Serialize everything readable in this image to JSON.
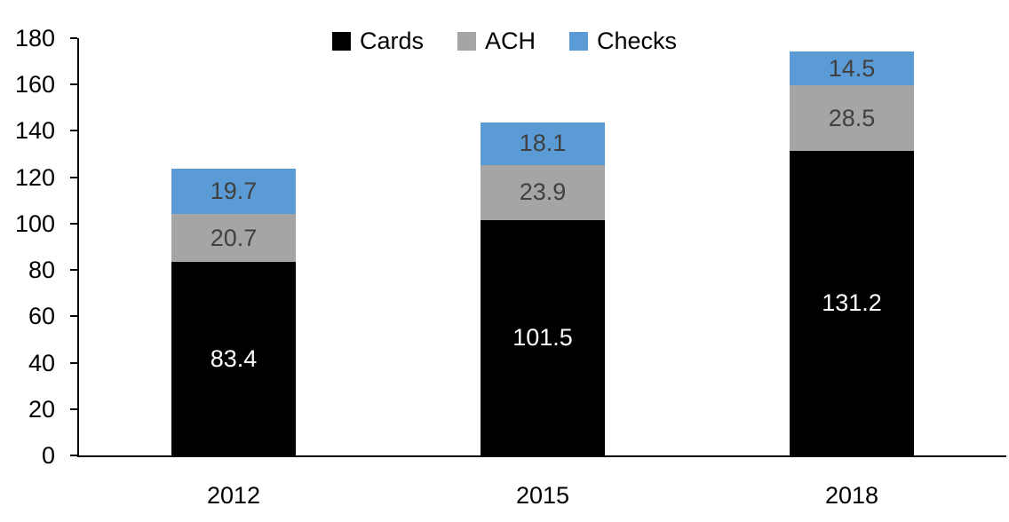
{
  "chart_data": {
    "type": "bar",
    "stacked": true,
    "title": "",
    "xlabel": "",
    "ylabel": "",
    "categories": [
      "2012",
      "2015",
      "2018"
    ],
    "series": [
      {
        "name": "Cards",
        "values": [
          83.4,
          101.5,
          131.2
        ],
        "color": "#000000",
        "label_color": "#ffffff"
      },
      {
        "name": "ACH",
        "values": [
          20.7,
          23.9,
          28.5
        ],
        "color": "#a5a5a5",
        "label_color": "#404040"
      },
      {
        "name": "Checks",
        "values": [
          19.7,
          18.1,
          14.5
        ],
        "color": "#5b9bd5",
        "label_color": "#404040"
      }
    ],
    "totals": [
      123.8,
      143.5,
      174.2
    ],
    "ylim": [
      0,
      180
    ],
    "yticks": [
      0,
      20,
      40,
      60,
      80,
      100,
      120,
      140,
      160,
      180
    ],
    "grid": false,
    "data_labels": true,
    "legend_position": "top-center",
    "colors": {
      "axis": "#000000",
      "tick_label": "#000000",
      "background": "#ffffff"
    }
  }
}
